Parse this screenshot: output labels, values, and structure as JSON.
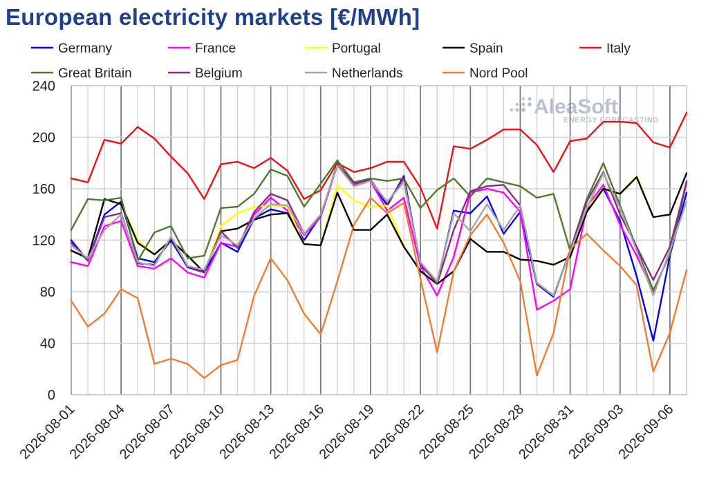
{
  "chart_data": {
    "type": "line",
    "title": "European electricity markets [€/MWh]",
    "watermark": {
      "name": "AleaSoft",
      "tagline": "ENERGY FORECASTING"
    },
    "xlabel": "",
    "ylabel": "",
    "ylim": [
      0,
      240
    ],
    "yticks": [
      0,
      40,
      80,
      120,
      160,
      200,
      240
    ],
    "grid": true,
    "legend_position": "top",
    "x": [
      "2026-08-01",
      "2026-08-02",
      "2026-08-03",
      "2026-08-04",
      "2026-08-05",
      "2026-08-06",
      "2026-08-07",
      "2026-08-08",
      "2026-08-09",
      "2026-08-10",
      "2026-08-11",
      "2026-08-12",
      "2026-08-13",
      "2026-08-14",
      "2026-08-15",
      "2026-08-16",
      "2026-08-17",
      "2026-08-18",
      "2026-08-19",
      "2026-08-20",
      "2026-08-21",
      "2026-08-22",
      "2026-08-23",
      "2026-08-24",
      "2026-08-25",
      "2026-08-26",
      "2026-08-27",
      "2026-08-28",
      "2026-08-29",
      "2026-08-30",
      "2026-08-31",
      "2026-09-01",
      "2026-09-02",
      "2026-09-03",
      "2026-09-04",
      "2026-09-05",
      "2026-09-06",
      "2026-09-07"
    ],
    "xtick_labels": [
      "2026-08-01",
      "2026-08-04",
      "2026-08-07",
      "2026-08-10",
      "2026-08-13",
      "2026-08-16",
      "2026-08-19",
      "2026-08-22",
      "2026-08-25",
      "2026-08-28",
      "2026-08-31",
      "2026-09-03",
      "2026-09-06"
    ],
    "series": [
      {
        "name": "Germany",
        "color": "#0000ff",
        "values": [
          120,
          104,
          140,
          150,
          106,
          103,
          120,
          99,
          95,
          118,
          111,
          137,
          144,
          141,
          120,
          139,
          179,
          163,
          166,
          147,
          170,
          101,
          87,
          143,
          141,
          154,
          125,
          142,
          86,
          76,
          112,
          143,
          160,
          135,
          92,
          42,
          108,
          157
        ]
      },
      {
        "name": "France",
        "color": "#ff00ff",
        "values": [
          103,
          100,
          131,
          135,
          100,
          98,
          106,
          95,
          91,
          118,
          115,
          140,
          153,
          143,
          124,
          138,
          178,
          163,
          166,
          143,
          153,
          100,
          77,
          107,
          157,
          160,
          157,
          142,
          66,
          73,
          82,
          146,
          163,
          132,
          108,
          80,
          110,
          166
        ]
      },
      {
        "name": "Portugal",
        "color": "#ffff00",
        "values": [
          112,
          106,
          152,
          148,
          120,
          109,
          120,
          108,
          95,
          131,
          141,
          146,
          147,
          146,
          117,
          116,
          163,
          151,
          146,
          147,
          115,
          96,
          86,
          96,
          121,
          111,
          111,
          105,
          104,
          101,
          107,
          145,
          160,
          156,
          170,
          138,
          140,
          172
        ]
      },
      {
        "name": "Spain",
        "color": "#000000",
        "values": [
          112,
          106,
          152,
          148,
          118,
          109,
          120,
          108,
          95,
          127,
          129,
          136,
          140,
          141,
          117,
          116,
          157,
          128,
          128,
          140,
          115,
          96,
          86,
          96,
          121,
          111,
          111,
          105,
          104,
          101,
          107,
          142,
          160,
          156,
          169,
          138,
          140,
          172
        ]
      },
      {
        "name": "Italy",
        "color": "#ee1111",
        "values": [
          168,
          165,
          198,
          195,
          208,
          199,
          185,
          172,
          152,
          179,
          181,
          176,
          184,
          174,
          152,
          159,
          180,
          173,
          176,
          181,
          181,
          161,
          129,
          193,
          191,
          198,
          206,
          206,
          194,
          173,
          197,
          199,
          212,
          212,
          211,
          196,
          192,
          219
        ]
      },
      {
        "name": "Great Britain",
        "color": "#4a7a2a",
        "values": [
          128,
          152,
          151,
          153,
          104,
          126,
          131,
          106,
          108,
          145,
          146,
          156,
          175,
          170,
          146,
          164,
          182,
          165,
          168,
          166,
          168,
          145,
          159,
          168,
          154,
          168,
          165,
          162,
          153,
          156,
          112,
          152,
          180,
          147,
          114,
          81,
          109,
          165
        ]
      },
      {
        "name": "Belgium",
        "color": "#8a2a8a",
        "values": [
          118,
          104,
          138,
          141,
          102,
          101,
          122,
          100,
          95,
          127,
          114,
          142,
          156,
          151,
          125,
          139,
          179,
          164,
          167,
          149,
          168,
          102,
          86,
          128,
          158,
          162,
          163,
          147,
          87,
          77,
          112,
          150,
          173,
          140,
          115,
          89,
          115,
          165
        ]
      },
      {
        "name": "Netherlands",
        "color": "#a6a6a6",
        "values": [
          116,
          106,
          128,
          140,
          103,
          100,
          123,
          100,
          97,
          124,
          116,
          137,
          148,
          147,
          125,
          140,
          178,
          162,
          166,
          150,
          165,
          103,
          88,
          141,
          127,
          148,
          128,
          147,
          87,
          77,
          111,
          145,
          172,
          145,
          112,
          77,
          112,
          150
        ]
      },
      {
        "name": "Nord Pool",
        "color": "#ee7d31",
        "values": [
          73,
          53,
          63,
          82,
          75,
          24,
          28,
          24,
          13,
          23,
          27,
          77,
          106,
          89,
          63,
          47,
          88,
          132,
          153,
          141,
          149,
          90,
          33,
          96,
          124,
          140,
          118,
          88,
          15,
          48,
          113,
          125,
          112,
          100,
          85,
          18,
          48,
          97
        ]
      }
    ]
  }
}
